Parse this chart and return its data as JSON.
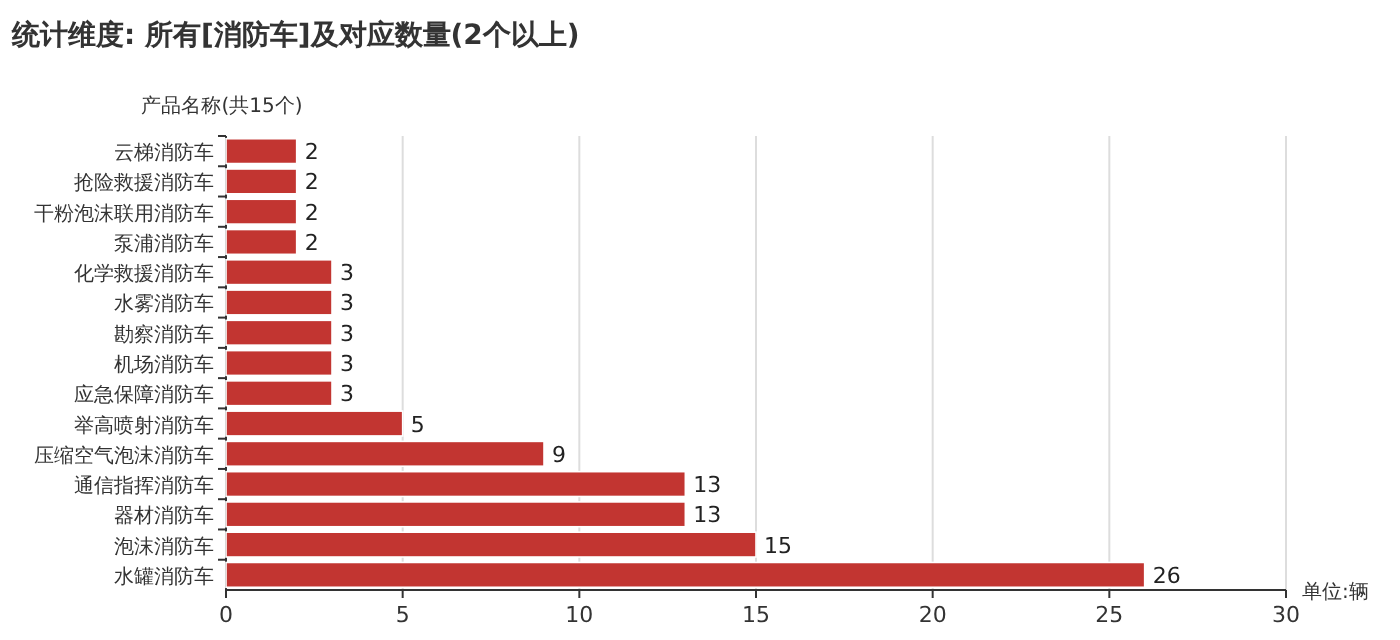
{
  "chart_data": {
    "type": "bar",
    "orientation": "horizontal",
    "title": "统计维度: 所有[消防车]及对应数量(2个以上)",
    "ylabel": "产品名称(共15个)",
    "xlabel": "单位:辆",
    "categories": [
      "云梯消防车",
      "抢险救援消防车",
      "干粉泡沫联用消防车",
      "泵浦消防车",
      "化学救援消防车",
      "水雾消防车",
      "勘察消防车",
      "机场消防车",
      "应急保障消防车",
      "举高喷射消防车",
      "压缩空气泡沫消防车",
      "通信指挥消防车",
      "器材消防车",
      "泡沫消防车",
      "水罐消防车"
    ],
    "values": [
      2,
      2,
      2,
      2,
      3,
      3,
      3,
      3,
      3,
      5,
      9,
      13,
      13,
      15,
      26
    ],
    "color": "#c23531",
    "xlim": [
      0,
      30
    ],
    "xticks": [
      0,
      5,
      10,
      15,
      20,
      25,
      30
    ],
    "grid": "x",
    "data_labels": true
  }
}
